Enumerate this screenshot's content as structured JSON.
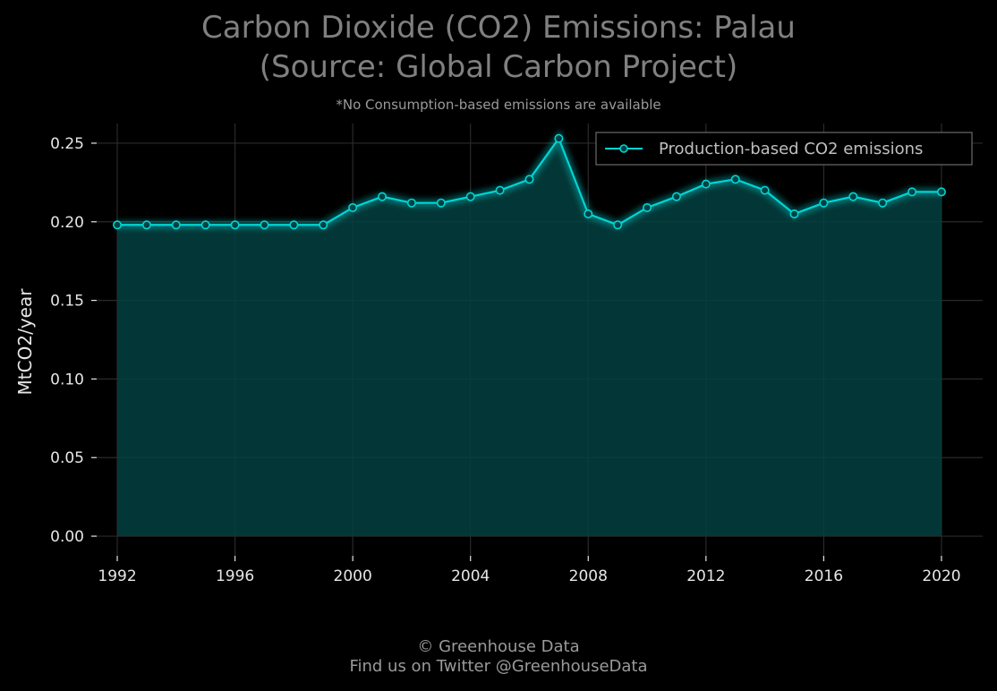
{
  "title_line1": "Carbon Dioxide (CO2) Emissions: Palau",
  "title_line2": "(Source: Global Carbon Project)",
  "subtitle": "*No Consumption-based emissions are available",
  "footer_line1": "© Greenhouse Data",
  "footer_line2": "Find us on Twitter @GreenhouseData",
  "colors": {
    "background": "#000000",
    "line": "#00d5d5",
    "fill": "#034040",
    "grid": "#2a2a2a",
    "title": "#808080"
  },
  "chart_data": {
    "type": "area",
    "title": "Carbon Dioxide (CO2) Emissions: Palau (Source: Global Carbon Project)",
    "xlabel": "",
    "ylabel": "MtCO2/year",
    "xlim": [
      1991.3,
      2021.4
    ],
    "ylim": [
      -0.0125,
      0.2625
    ],
    "x_ticks": [
      1992,
      1996,
      2000,
      2004,
      2008,
      2012,
      2016,
      2020
    ],
    "y_ticks": [
      0.0,
      0.05,
      0.1,
      0.15,
      0.2,
      0.25
    ],
    "y_tick_labels": [
      "0.00",
      "0.05",
      "0.10",
      "0.15",
      "0.20",
      "0.25"
    ],
    "grid": true,
    "legend_position": "top-right",
    "series": [
      {
        "name": "Production-based CO2 emissions",
        "x": [
          1992,
          1993,
          1994,
          1995,
          1996,
          1997,
          1998,
          1999,
          2000,
          2001,
          2002,
          2003,
          2004,
          2005,
          2006,
          2007,
          2008,
          2009,
          2010,
          2011,
          2012,
          2013,
          2014,
          2015,
          2016,
          2017,
          2018,
          2019,
          2020
        ],
        "values": [
          0.198,
          0.198,
          0.198,
          0.198,
          0.198,
          0.198,
          0.198,
          0.198,
          0.209,
          0.216,
          0.212,
          0.212,
          0.216,
          0.22,
          0.227,
          0.253,
          0.205,
          0.198,
          0.209,
          0.216,
          0.224,
          0.227,
          0.22,
          0.205,
          0.212,
          0.216,
          0.212,
          0.219,
          0.219
        ]
      }
    ]
  }
}
